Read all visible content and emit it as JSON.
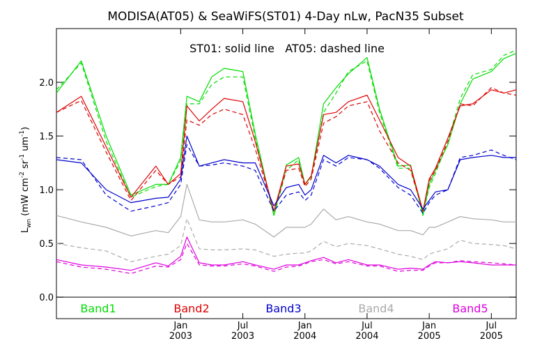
{
  "chart_data": {
    "type": "line",
    "title": "MODISA(AT05) & SeaWiFS(ST01) 4-Day nLw, PacN35 Subset",
    "subtitle": "ST01: solid line   AT05: dashed line",
    "ylabel": "L_wn (mW cm^-2 sr^-1 um^-1)",
    "ylabel_parts": {
      "base": "L",
      "sub": "wn",
      "units_a": "(mW cm",
      "sup_a": "-2",
      "units_b": " sr",
      "sup_b": "-1",
      "units_c": " um",
      "sup_c": "-1",
      "close": ")"
    },
    "ylim": [
      -0.2,
      2.5
    ],
    "xlim": [
      2002.0,
      2005.7
    ],
    "yticks": [
      {
        "value": 0.0,
        "label": "0.0"
      },
      {
        "value": 0.5,
        "label": "0.5"
      },
      {
        "value": 1.0,
        "label": "1.0"
      },
      {
        "value": 1.5,
        "label": "1.5"
      },
      {
        "value": 2.0,
        "label": "2.0"
      }
    ],
    "xticks": [
      {
        "value": 2003.0,
        "month": "Jan",
        "year": "2003"
      },
      {
        "value": 2003.5,
        "month": "Jul",
        "year": "2003"
      },
      {
        "value": 2004.0,
        "month": "Jan",
        "year": "2004"
      },
      {
        "value": 2004.5,
        "month": "Jul",
        "year": "2004"
      },
      {
        "value": 2005.0,
        "month": "Jan",
        "year": "2005"
      },
      {
        "value": 2005.5,
        "month": "Jul",
        "year": "2005"
      }
    ],
    "x": [
      2002.0,
      2002.2,
      2002.4,
      2002.6,
      2002.8,
      2002.9,
      2003.0,
      2003.05,
      2003.15,
      2003.25,
      2003.35,
      2003.5,
      2003.6,
      2003.75,
      2003.85,
      2003.95,
      2004.0,
      2004.05,
      2004.15,
      2004.25,
      2004.35,
      2004.5,
      2004.6,
      2004.75,
      2004.85,
      2004.95,
      2005.0,
      2005.05,
      2005.15,
      2005.25,
      2005.35,
      2005.5,
      2005.6,
      2005.7
    ],
    "series": [
      {
        "name": "Band1",
        "line": "ST01",
        "color": "#00dd00",
        "dash": false,
        "values": [
          1.9,
          2.2,
          1.5,
          0.95,
          1.05,
          1.05,
          1.3,
          1.87,
          1.82,
          2.05,
          2.13,
          2.1,
          1.52,
          0.76,
          1.23,
          1.3,
          1.05,
          1.12,
          1.8,
          1.95,
          2.08,
          2.23,
          1.75,
          1.22,
          1.23,
          0.76,
          1.05,
          1.18,
          1.42,
          1.8,
          2.03,
          2.1,
          2.22,
          2.27
        ]
      },
      {
        "name": "",
        "line": "AT05",
        "color": "#00dd00",
        "dash": true,
        "values": [
          1.93,
          2.18,
          1.45,
          0.93,
          1.03,
          1.05,
          1.27,
          1.8,
          1.8,
          1.98,
          2.05,
          2.05,
          1.48,
          0.76,
          1.18,
          1.28,
          1.03,
          1.1,
          1.72,
          1.9,
          2.1,
          2.2,
          1.72,
          1.2,
          1.2,
          0.78,
          1.02,
          1.15,
          1.45,
          1.85,
          2.07,
          2.12,
          2.25,
          2.3
        ]
      },
      {
        "name": "Band2",
        "line": "ST01",
        "color": "#dd0000",
        "dash": false,
        "values": [
          1.72,
          1.87,
          1.4,
          0.93,
          1.22,
          1.05,
          1.15,
          1.78,
          1.64,
          1.75,
          1.85,
          1.82,
          1.45,
          0.8,
          1.22,
          1.24,
          1.05,
          1.13,
          1.7,
          1.72,
          1.82,
          1.88,
          1.65,
          1.3,
          1.22,
          0.8,
          1.1,
          1.2,
          1.48,
          1.78,
          1.8,
          1.93,
          1.9,
          1.93
        ]
      },
      {
        "name": "",
        "line": "AT05",
        "color": "#dd0000",
        "dash": true,
        "values": [
          1.72,
          1.83,
          1.35,
          0.9,
          1.18,
          1.05,
          1.12,
          1.65,
          1.6,
          1.7,
          1.75,
          1.7,
          1.38,
          0.8,
          1.18,
          1.2,
          1.03,
          1.1,
          1.62,
          1.68,
          1.78,
          1.82,
          1.55,
          1.25,
          1.18,
          0.8,
          1.08,
          1.18,
          1.45,
          1.8,
          1.78,
          1.95,
          1.9,
          1.88
        ]
      },
      {
        "name": "Band3",
        "line": "ST01",
        "color": "#0000cc",
        "dash": false,
        "values": [
          1.28,
          1.25,
          1.0,
          0.88,
          0.92,
          0.93,
          1.1,
          1.5,
          1.22,
          1.25,
          1.28,
          1.25,
          1.25,
          0.85,
          1.02,
          1.05,
          0.95,
          1.0,
          1.32,
          1.25,
          1.32,
          1.28,
          1.22,
          1.05,
          1.0,
          0.82,
          0.9,
          0.98,
          1.0,
          1.28,
          1.3,
          1.32,
          1.3,
          1.3
        ]
      },
      {
        "name": "",
        "line": "AT05",
        "color": "#0000cc",
        "dash": true,
        "values": [
          1.3,
          1.28,
          0.95,
          0.8,
          0.85,
          0.88,
          1.05,
          1.42,
          1.22,
          1.23,
          1.25,
          1.22,
          1.18,
          0.8,
          0.95,
          0.98,
          0.9,
          0.95,
          1.28,
          1.22,
          1.3,
          1.28,
          1.2,
          1.02,
          0.95,
          0.78,
          0.88,
          0.95,
          1.0,
          1.3,
          1.32,
          1.37,
          1.32,
          1.28
        ]
      },
      {
        "name": "Band4",
        "line": "ST01",
        "color": "#aaaaaa",
        "dash": false,
        "values": [
          0.76,
          0.7,
          0.65,
          0.57,
          0.62,
          0.6,
          0.75,
          1.05,
          0.72,
          0.7,
          0.7,
          0.72,
          0.68,
          0.56,
          0.65,
          0.65,
          0.65,
          0.68,
          0.82,
          0.72,
          0.75,
          0.7,
          0.68,
          0.62,
          0.62,
          0.58,
          0.65,
          0.65,
          0.7,
          0.75,
          0.73,
          0.72,
          0.7,
          0.7
        ]
      },
      {
        "name": "",
        "line": "AT05",
        "color": "#aaaaaa",
        "dash": true,
        "values": [
          0.5,
          0.46,
          0.43,
          0.33,
          0.38,
          0.4,
          0.48,
          0.73,
          0.45,
          0.44,
          0.44,
          0.45,
          0.44,
          0.38,
          0.4,
          0.41,
          0.41,
          0.43,
          0.52,
          0.47,
          0.5,
          0.48,
          0.45,
          0.4,
          0.38,
          0.35,
          0.4,
          0.42,
          0.45,
          0.53,
          0.5,
          0.49,
          0.48,
          0.45
        ]
      },
      {
        "name": "Band5",
        "line": "ST01",
        "color": "#dd00dd",
        "dash": false,
        "values": [
          0.35,
          0.3,
          0.28,
          0.25,
          0.32,
          0.29,
          0.38,
          0.56,
          0.32,
          0.3,
          0.3,
          0.33,
          0.3,
          0.26,
          0.3,
          0.3,
          0.32,
          0.34,
          0.37,
          0.32,
          0.35,
          0.3,
          0.3,
          0.26,
          0.27,
          0.26,
          0.3,
          0.33,
          0.32,
          0.33,
          0.32,
          0.3,
          0.3,
          0.3
        ]
      },
      {
        "name": "",
        "line": "AT05",
        "color": "#dd00dd",
        "dash": true,
        "values": [
          0.33,
          0.28,
          0.26,
          0.22,
          0.29,
          0.28,
          0.35,
          0.5,
          0.3,
          0.29,
          0.29,
          0.31,
          0.29,
          0.24,
          0.28,
          0.29,
          0.31,
          0.33,
          0.35,
          0.31,
          0.33,
          0.29,
          0.29,
          0.24,
          0.25,
          0.25,
          0.29,
          0.32,
          0.32,
          0.34,
          0.33,
          0.32,
          0.31,
          0.3
        ]
      }
    ]
  }
}
